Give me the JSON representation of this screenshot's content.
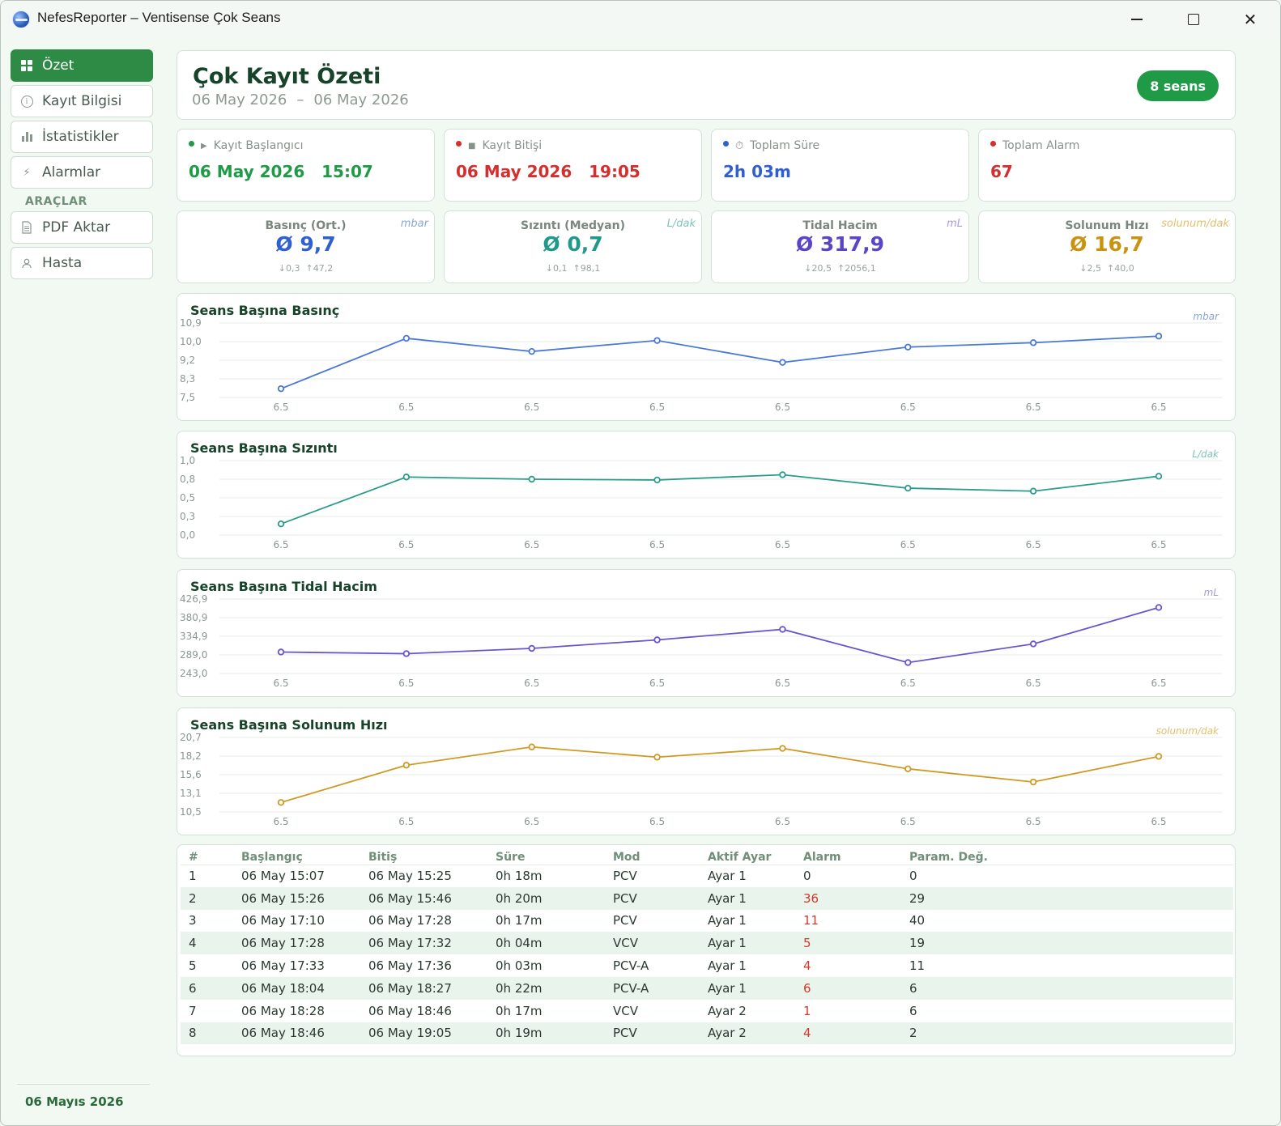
{
  "window": {
    "title": "NefesReporter – Ventisense Çok Seans"
  },
  "sidebar": {
    "items": [
      {
        "label": "Özet",
        "icon": "grid-icon",
        "active": true
      },
      {
        "label": "Kayıt Bilgisi",
        "icon": "info-icon"
      },
      {
        "label": "İstatistikler",
        "icon": "bar-chart-icon"
      },
      {
        "label": "Alarmlar",
        "icon": "lightning-icon"
      }
    ],
    "section_label": "ARAÇLAR",
    "tools": [
      {
        "label": "PDF Aktar",
        "icon": "document-icon"
      },
      {
        "label": "Hasta",
        "icon": "user-icon"
      }
    ],
    "footer_date": "06 Mayıs 2026"
  },
  "header": {
    "title": "Çok Kayıt Özeti",
    "range_start": "06 May 2026",
    "range_sep": "–",
    "range_end": "06 May 2026",
    "badge": "8 seans"
  },
  "stats": [
    {
      "label": "Kayıt Başlangıcı",
      "value": "06 May 2026   15:07",
      "color": "#1f9a47",
      "dot": "#1f9a47",
      "icon": "play-icon"
    },
    {
      "label": "Kayıt Bitişi",
      "value": "06 May 2026   19:05",
      "color": "#d32f2f",
      "dot": "#d32f2f",
      "icon": "stop-icon"
    },
    {
      "label": "Toplam Süre",
      "value": "2h 03m",
      "color": "#2f5fd0",
      "dot": "#2f5fd0",
      "icon": "timer-icon"
    },
    {
      "label": "Toplam Alarm",
      "value": "67",
      "color": "#d32f2f",
      "dot": "#d32f2f",
      "icon": ""
    }
  ],
  "metrics": [
    {
      "title": "Basınç (Ort.)",
      "unit": "mbar",
      "value": "Ø 9,7",
      "min": "↓0,3",
      "max": "↑47,2",
      "color": "#2f5fd0",
      "unit_color": "#8aa6d8"
    },
    {
      "title": "Sızıntı (Medyan)",
      "unit": "L/dak",
      "value": "Ø 0,7",
      "min": "↓0,1",
      "max": "↑98,1",
      "color": "#1f9a8a",
      "unit_color": "#7ec4b8"
    },
    {
      "title": "Tidal Hacim",
      "unit": "mL",
      "value": "Ø 317,9",
      "min": "↓20,5",
      "max": "↑2056,1",
      "color": "#5a45c8",
      "unit_color": "#a79bdf"
    },
    {
      "title": "Solunum Hızı",
      "unit": "solunum/dak",
      "value": "Ø 16,7",
      "min": "↓2,5",
      "max": "↑40,0",
      "color": "#c9930f",
      "unit_color": "#e2c06e"
    }
  ],
  "charts": [
    {
      "title": "Seans Başına Basınç",
      "unit": "mbar",
      "color": "#4a78d4",
      "chart_data": {
        "type": "line",
        "x": [
          "6.5",
          "6.5",
          "6.5",
          "6.5",
          "6.5",
          "6.5",
          "6.5",
          "6.5"
        ],
        "values": [
          7.9,
          10.2,
          9.6,
          10.1,
          9.1,
          9.8,
          10.0,
          10.3
        ],
        "yticks": [
          "10,9",
          "10,0",
          "9,2",
          "8,3",
          "7,5"
        ],
        "ylim": [
          7.5,
          10.9
        ]
      }
    },
    {
      "title": "Seans Başına Sızıntı",
      "unit": "L/dak",
      "color": "#2a9c8a",
      "chart_data": {
        "type": "line",
        "x": [
          "6.5",
          "6.5",
          "6.5",
          "6.5",
          "6.5",
          "6.5",
          "6.5",
          "6.5"
        ],
        "values": [
          0.15,
          0.78,
          0.75,
          0.74,
          0.81,
          0.63,
          0.59,
          0.79
        ],
        "yticks": [
          "1,0",
          "0,8",
          "0,5",
          "0,3",
          "0,0"
        ],
        "ylim": [
          0,
          1.0
        ]
      }
    },
    {
      "title": "Seans Başına Tidal Hacim",
      "unit": "mL",
      "color": "#6a55cc",
      "chart_data": {
        "type": "line",
        "x": [
          "6.5",
          "6.5",
          "6.5",
          "6.5",
          "6.5",
          "6.5",
          "6.5",
          "6.5"
        ],
        "values": [
          296,
          292,
          305,
          326,
          352,
          270,
          316,
          406
        ],
        "yticks": [
          "426,9",
          "380,9",
          "334,9",
          "289,0",
          "243,0"
        ],
        "ylim": [
          243.0,
          426.9
        ]
      }
    },
    {
      "title": "Seans Başına Solunum Hızı",
      "unit": "solunum/dak",
      "color": "#cf9a24",
      "chart_data": {
        "type": "line",
        "x": [
          "6.5",
          "6.5",
          "6.5",
          "6.5",
          "6.5",
          "6.5",
          "6.5",
          "6.5"
        ],
        "values": [
          11.8,
          16.9,
          19.4,
          18.0,
          19.2,
          16.4,
          14.6,
          18.1
        ],
        "yticks": [
          "20,7",
          "18,2",
          "15,6",
          "13,1",
          "10,5"
        ],
        "ylim": [
          10.5,
          20.7
        ]
      }
    }
  ],
  "table": {
    "headers": [
      "#",
      "Başlangıç",
      "Bitiş",
      "Süre",
      "Mod",
      "Aktif Ayar",
      "Alarm",
      "Param. Değ."
    ],
    "rows": [
      [
        "1",
        "06 May  15:07",
        "06 May  15:25",
        "0h 18m",
        "PCV",
        "Ayar 1",
        "0",
        "0"
      ],
      [
        "2",
        "06 May  15:26",
        "06 May  15:46",
        "0h 20m",
        "PCV",
        "Ayar 1",
        "36",
        "29"
      ],
      [
        "3",
        "06 May  17:10",
        "06 May  17:28",
        "0h 17m",
        "PCV",
        "Ayar 1",
        "11",
        "40"
      ],
      [
        "4",
        "06 May  17:28",
        "06 May  17:32",
        "0h 04m",
        "VCV",
        "Ayar 1",
        "5",
        "19"
      ],
      [
        "5",
        "06 May  17:33",
        "06 May  17:36",
        "0h 03m",
        "PCV-A",
        "Ayar 1",
        "4",
        "11"
      ],
      [
        "6",
        "06 May  18:04",
        "06 May  18:27",
        "0h 22m",
        "PCV-A",
        "Ayar 1",
        "6",
        "6"
      ],
      [
        "7",
        "06 May  18:28",
        "06 May  18:46",
        "0h 17m",
        "VCV",
        "Ayar 2",
        "1",
        "6"
      ],
      [
        "8",
        "06 May  18:46",
        "06 May  19:05",
        "0h 19m",
        "PCV",
        "Ayar 2",
        "4",
        "2"
      ]
    ]
  }
}
